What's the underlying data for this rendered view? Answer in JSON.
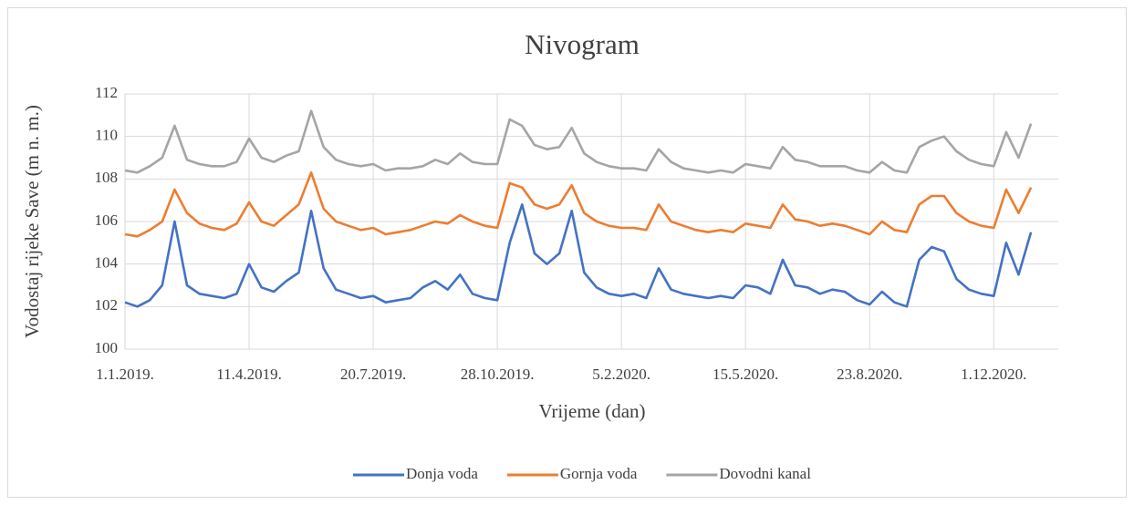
{
  "chart_data": {
    "type": "line",
    "title": "Nivogram",
    "x_label": "Vrijeme (dan)",
    "y_label": "Vodostaj rijeke Save (m n. m.)",
    "x": [
      "1.1.2019.",
      "11.1.2019.",
      "21.1.2019.",
      "31.1.2019.",
      "10.2.2019.",
      "20.2.2019.",
      "2.3.2019.",
      "12.3.2019.",
      "22.3.2019.",
      "1.4.2019.",
      "11.4.2019.",
      "21.4.2019.",
      "1.5.2019.",
      "11.5.2019.",
      "21.5.2019.",
      "31.5.2019.",
      "10.6.2019.",
      "20.6.2019.",
      "30.6.2019.",
      "10.7.2019.",
      "20.7.2019.",
      "30.7.2019.",
      "9.8.2019.",
      "19.8.2019.",
      "29.8.2019.",
      "8.9.2019.",
      "18.9.2019.",
      "28.9.2019.",
      "8.10.2019.",
      "18.10.2019.",
      "28.10.2019.",
      "7.11.2019.",
      "17.11.2019.",
      "27.11.2019.",
      "7.12.2019.",
      "17.12.2019.",
      "27.12.2019.",
      "6.1.2020.",
      "16.1.2020.",
      "26.1.2020.",
      "5.2.2020.",
      "15.2.2020.",
      "25.2.2020.",
      "6.3.2020.",
      "16.3.2020.",
      "26.3.2020.",
      "5.4.2020.",
      "15.4.2020.",
      "25.4.2020.",
      "5.5.2020.",
      "15.5.2020.",
      "25.5.2020.",
      "4.6.2020.",
      "14.6.2020.",
      "24.6.2020.",
      "4.7.2020.",
      "14.7.2020.",
      "24.7.2020.",
      "3.8.2020.",
      "13.8.2020.",
      "23.8.2020.",
      "2.9.2020.",
      "12.9.2020.",
      "22.9.2020.",
      "2.10.2020.",
      "12.10.2020.",
      "22.10.2020.",
      "1.11.2020.",
      "11.11.2020.",
      "21.11.2020.",
      "1.12.2020.",
      "11.12.2020.",
      "21.12.2020.",
      "31.12.2020."
    ],
    "series": [
      {
        "name": "Donja voda",
        "color": "#4472c4",
        "values": [
          102.2,
          102.0,
          102.3,
          103.0,
          106.0,
          103.0,
          102.6,
          102.5,
          102.4,
          102.6,
          104.0,
          102.9,
          102.7,
          103.2,
          103.6,
          106.5,
          103.8,
          102.8,
          102.6,
          102.4,
          102.5,
          102.2,
          102.3,
          102.4,
          102.9,
          103.2,
          102.8,
          103.5,
          102.6,
          102.4,
          102.3,
          105.0,
          106.8,
          104.5,
          104.0,
          104.5,
          106.5,
          103.6,
          102.9,
          102.6,
          102.5,
          102.6,
          102.4,
          103.8,
          102.8,
          102.6,
          102.5,
          102.4,
          102.5,
          102.4,
          103.0,
          102.9,
          102.6,
          104.2,
          103.0,
          102.9,
          102.6,
          102.8,
          102.7,
          102.3,
          102.1,
          102.7,
          102.2,
          102.0,
          104.2,
          104.8,
          104.6,
          103.3,
          102.8,
          102.6,
          102.5,
          105.0,
          103.5,
          105.5
        ]
      },
      {
        "name": "Gornja voda",
        "color": "#ed7d31",
        "values": [
          105.4,
          105.3,
          105.6,
          106.0,
          107.5,
          106.4,
          105.9,
          105.7,
          105.6,
          105.9,
          106.9,
          106.0,
          105.8,
          106.3,
          106.8,
          108.3,
          106.6,
          106.0,
          105.8,
          105.6,
          105.7,
          105.4,
          105.5,
          105.6,
          105.8,
          106.0,
          105.9,
          106.3,
          106.0,
          105.8,
          105.7,
          107.8,
          107.6,
          106.8,
          106.6,
          106.8,
          107.7,
          106.4,
          106.0,
          105.8,
          105.7,
          105.7,
          105.6,
          106.8,
          106.0,
          105.8,
          105.6,
          105.5,
          105.6,
          105.5,
          105.9,
          105.8,
          105.7,
          106.8,
          106.1,
          106.0,
          105.8,
          105.9,
          105.8,
          105.6,
          105.4,
          106.0,
          105.6,
          105.5,
          106.8,
          107.2,
          107.2,
          106.4,
          106.0,
          105.8,
          105.7,
          107.5,
          106.4,
          107.6
        ]
      },
      {
        "name": "Dovodni kanal",
        "color": "#a5a5a5",
        "values": [
          108.4,
          108.3,
          108.6,
          109.0,
          110.5,
          108.9,
          108.7,
          108.6,
          108.6,
          108.8,
          109.9,
          109.0,
          108.8,
          109.1,
          109.3,
          111.2,
          109.5,
          108.9,
          108.7,
          108.6,
          108.7,
          108.4,
          108.5,
          108.5,
          108.6,
          108.9,
          108.7,
          109.2,
          108.8,
          108.7,
          108.7,
          110.8,
          110.5,
          109.6,
          109.4,
          109.5,
          110.4,
          109.2,
          108.8,
          108.6,
          108.5,
          108.5,
          108.4,
          109.4,
          108.8,
          108.5,
          108.4,
          108.3,
          108.4,
          108.3,
          108.7,
          108.6,
          108.5,
          109.5,
          108.9,
          108.8,
          108.6,
          108.6,
          108.6,
          108.4,
          108.3,
          108.8,
          108.4,
          108.3,
          109.5,
          109.8,
          110.0,
          109.3,
          108.9,
          108.7,
          108.6,
          110.2,
          109.0,
          110.6
        ]
      }
    ],
    "xlim": [
      "1.1.2019.",
      "22.1.2021."
    ],
    "xticks": [
      "1.1.2019.",
      "11.4.2019.",
      "20.7.2019.",
      "28.10.2019.",
      "5.2.2020.",
      "15.5.2020.",
      "23.8.2020.",
      "1.12.2020."
    ],
    "ylim": [
      100,
      112
    ],
    "yticks": [
      100,
      102,
      104,
      106,
      108,
      110,
      112
    ],
    "grid": true,
    "legend": "bottom"
  }
}
